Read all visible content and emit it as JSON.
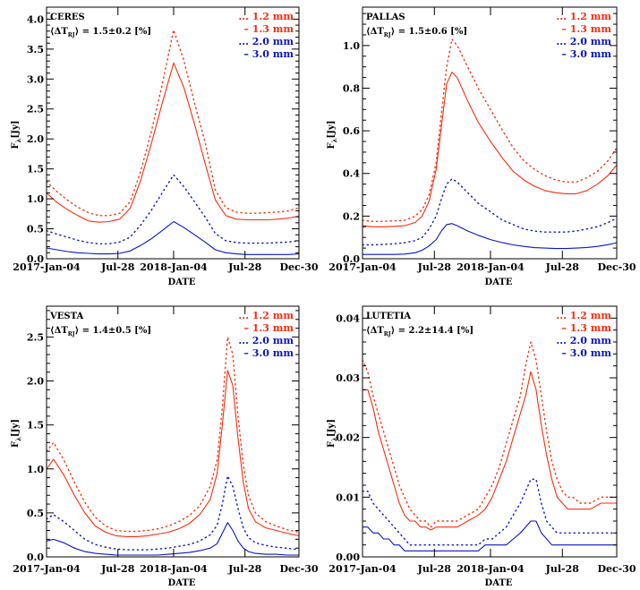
{
  "figure": {
    "colors": {
      "red": "#ff2a0a",
      "blue": "#0a14c8",
      "axis": "#000000"
    },
    "x_axis": {
      "label": "DATE",
      "range_days": [
        0,
        725
      ],
      "ticks": [
        {
          "label": "2017-Jan-04",
          "day": 0
        },
        {
          "label": "Jul-28",
          "day": 205
        },
        {
          "label": "2018-Jan-04",
          "day": 365
        },
        {
          "label": "Jul-28",
          "day": 570
        },
        {
          "label": "Dec-30",
          "day": 725
        }
      ]
    },
    "legend": [
      {
        "prefix": "...",
        "label": "1.2 mm",
        "color": "red",
        "style": "dotted"
      },
      {
        "prefix": "–",
        "label": "1.3 mm",
        "color": "red",
        "style": "solid"
      },
      {
        "prefix": "...",
        "label": "2.0 mm",
        "color": "blue",
        "style": "dotted"
      },
      {
        "prefix": "–",
        "label": "3.0 mm",
        "color": "blue",
        "style": "solid"
      }
    ]
  },
  "chart_data": [
    {
      "type": "line",
      "title": "CERES",
      "annotation": "⟨ΔT_RJ⟩ = 1.5±0.2 [%]",
      "annotation_value": "1.5±0.2 [%]",
      "xlabel": "DATE",
      "ylabel": "Fλ [Jy]",
      "ylim": [
        0,
        4.2
      ],
      "yticks": [
        0.0,
        0.5,
        1.0,
        1.5,
        2.0,
        2.5,
        3.0,
        3.5,
        4.0
      ],
      "ytick_labels": [
        "0.0",
        "0.5",
        "1.0",
        "1.5",
        "2.0",
        "2.5",
        "3.0",
        "3.5",
        "4.0"
      ],
      "yminor": 0.1,
      "x_days": [
        0,
        30,
        60,
        90,
        120,
        150,
        180,
        210,
        240,
        270,
        300,
        330,
        365,
        395,
        425,
        455,
        485,
        515,
        545,
        575,
        605,
        635,
        665,
        695,
        725
      ],
      "series": [
        {
          "name": "1.2 mm",
          "color": "red",
          "style": "dotted",
          "values": [
            1.29,
            1.12,
            0.98,
            0.86,
            0.77,
            0.72,
            0.72,
            0.76,
            0.95,
            1.45,
            2.1,
            2.85,
            3.82,
            3.3,
            2.6,
            1.95,
            1.15,
            0.85,
            0.78,
            0.76,
            0.76,
            0.77,
            0.78,
            0.8,
            0.85
          ]
        },
        {
          "name": "1.3 mm",
          "color": "red",
          "style": "solid",
          "values": [
            1.1,
            0.94,
            0.82,
            0.72,
            0.63,
            0.61,
            0.62,
            0.66,
            0.84,
            1.3,
            1.9,
            2.55,
            3.27,
            2.85,
            2.25,
            1.6,
            0.98,
            0.72,
            0.66,
            0.65,
            0.65,
            0.65,
            0.66,
            0.68,
            0.71
          ]
        },
        {
          "name": "2.0 mm",
          "color": "blue",
          "style": "dotted",
          "values": [
            0.47,
            0.41,
            0.36,
            0.31,
            0.27,
            0.25,
            0.25,
            0.28,
            0.36,
            0.56,
            0.8,
            1.08,
            1.4,
            1.2,
            0.95,
            0.7,
            0.42,
            0.3,
            0.27,
            0.26,
            0.26,
            0.26,
            0.27,
            0.28,
            0.3
          ]
        },
        {
          "name": "3.0 mm",
          "color": "blue",
          "style": "solid",
          "values": [
            0.18,
            0.15,
            0.12,
            0.1,
            0.09,
            0.08,
            0.08,
            0.09,
            0.13,
            0.22,
            0.33,
            0.46,
            0.62,
            0.52,
            0.4,
            0.28,
            0.15,
            0.1,
            0.08,
            0.07,
            0.07,
            0.07,
            0.07,
            0.07,
            0.08
          ]
        }
      ]
    },
    {
      "type": "line",
      "title": "PALLAS",
      "annotation": "⟨ΔT_RJ⟩ = 1.5±0.6 [%]",
      "annotation_value": "1.5±0.6 [%]",
      "xlabel": "DATE",
      "ylabel": "Fλ [Jy]",
      "ylim": [
        0,
        1.18
      ],
      "yticks": [
        0.0,
        0.2,
        0.4,
        0.6,
        0.8,
        1.0
      ],
      "ytick_labels": [
        "0.0",
        "0.2",
        "0.4",
        "0.6",
        "0.8",
        "1.0"
      ],
      "yminor": 0.05,
      "x_days": [
        0,
        30,
        60,
        90,
        120,
        150,
        170,
        190,
        210,
        225,
        240,
        255,
        270,
        300,
        330,
        365,
        400,
        430,
        460,
        490,
        520,
        550,
        580,
        610,
        640,
        670,
        700,
        725
      ],
      "series": [
        {
          "name": "1.2 mm",
          "color": "red",
          "style": "dotted",
          "values": [
            0.18,
            0.175,
            0.175,
            0.178,
            0.18,
            0.2,
            0.23,
            0.3,
            0.45,
            0.68,
            0.9,
            1.03,
            1.0,
            0.9,
            0.8,
            0.7,
            0.6,
            0.52,
            0.46,
            0.42,
            0.39,
            0.37,
            0.36,
            0.36,
            0.38,
            0.41,
            0.46,
            0.52
          ]
        },
        {
          "name": "1.3 mm",
          "color": "red",
          "style": "solid",
          "values": [
            0.155,
            0.15,
            0.15,
            0.152,
            0.155,
            0.17,
            0.2,
            0.27,
            0.42,
            0.62,
            0.82,
            0.875,
            0.85,
            0.74,
            0.64,
            0.55,
            0.47,
            0.41,
            0.37,
            0.34,
            0.32,
            0.31,
            0.305,
            0.305,
            0.32,
            0.35,
            0.39,
            0.44
          ]
        },
        {
          "name": "2.0 mm",
          "color": "blue",
          "style": "dotted",
          "values": [
            0.065,
            0.065,
            0.067,
            0.07,
            0.075,
            0.085,
            0.1,
            0.14,
            0.2,
            0.28,
            0.35,
            0.375,
            0.36,
            0.31,
            0.26,
            0.22,
            0.18,
            0.16,
            0.14,
            0.13,
            0.125,
            0.125,
            0.125,
            0.13,
            0.14,
            0.15,
            0.17,
            0.19
          ]
        },
        {
          "name": "3.0 mm",
          "color": "blue",
          "style": "solid",
          "values": [
            0.02,
            0.02,
            0.02,
            0.02,
            0.022,
            0.028,
            0.04,
            0.06,
            0.09,
            0.13,
            0.16,
            0.165,
            0.155,
            0.13,
            0.11,
            0.09,
            0.075,
            0.065,
            0.058,
            0.052,
            0.05,
            0.048,
            0.048,
            0.05,
            0.053,
            0.058,
            0.066,
            0.075
          ]
        }
      ]
    },
    {
      "type": "line",
      "title": "VESTA",
      "annotation": "⟨ΔT_RJ⟩ = 1.4±0.5 [%]",
      "annotation_value": "1.4±0.5 [%]",
      "xlabel": "DATE",
      "ylabel": "Fλ [Jy]",
      "ylim": [
        0,
        2.85
      ],
      "yticks": [
        0.0,
        0.5,
        1.0,
        1.5,
        2.0,
        2.5
      ],
      "ytick_labels": [
        "0.0",
        "0.5",
        "1.0",
        "1.5",
        "2.0",
        "2.5"
      ],
      "yminor": 0.1,
      "x_days": [
        0,
        20,
        50,
        80,
        110,
        140,
        170,
        200,
        230,
        260,
        290,
        320,
        350,
        380,
        410,
        440,
        470,
        490,
        505,
        520,
        535,
        550,
        565,
        580,
        600,
        630,
        660,
        690,
        725
      ],
      "series": [
        {
          "name": "1.2 mm",
          "color": "red",
          "style": "dotted",
          "values": [
            1.2,
            1.3,
            1.1,
            0.85,
            0.62,
            0.45,
            0.35,
            0.3,
            0.29,
            0.29,
            0.3,
            0.32,
            0.35,
            0.4,
            0.47,
            0.58,
            0.8,
            1.1,
            1.7,
            2.5,
            2.3,
            1.6,
            1.05,
            0.7,
            0.5,
            0.4,
            0.35,
            0.31,
            0.28
          ]
        },
        {
          "name": "1.3 mm",
          "color": "red",
          "style": "solid",
          "values": [
            1.0,
            1.11,
            0.93,
            0.7,
            0.5,
            0.35,
            0.28,
            0.24,
            0.23,
            0.23,
            0.24,
            0.26,
            0.28,
            0.32,
            0.38,
            0.48,
            0.65,
            0.95,
            1.5,
            2.12,
            1.95,
            1.35,
            0.85,
            0.55,
            0.4,
            0.33,
            0.3,
            0.27,
            0.24
          ]
        },
        {
          "name": "2.0 mm",
          "color": "blue",
          "style": "dotted",
          "values": [
            0.43,
            0.48,
            0.4,
            0.3,
            0.2,
            0.14,
            0.11,
            0.09,
            0.08,
            0.08,
            0.08,
            0.09,
            0.1,
            0.12,
            0.14,
            0.18,
            0.25,
            0.36,
            0.6,
            0.92,
            0.8,
            0.55,
            0.33,
            0.22,
            0.16,
            0.13,
            0.11,
            0.1,
            0.08
          ]
        },
        {
          "name": "3.0 mm",
          "color": "blue",
          "style": "solid",
          "values": [
            0.18,
            0.2,
            0.16,
            0.1,
            0.06,
            0.04,
            0.03,
            0.02,
            0.02,
            0.02,
            0.02,
            0.02,
            0.03,
            0.04,
            0.05,
            0.07,
            0.1,
            0.15,
            0.27,
            0.39,
            0.3,
            0.18,
            0.1,
            0.06,
            0.04,
            0.03,
            0.03,
            0.02,
            0.02
          ]
        }
      ]
    },
    {
      "type": "line",
      "title": "LUTETIA",
      "annotation": "⟨ΔT_RJ⟩ = 2.2±14.4 [%]",
      "annotation_value": "2.2±14.4 [%]",
      "xlabel": "DATE",
      "ylabel": "Fλ [Jy]",
      "ylim": [
        0,
        0.042
      ],
      "yticks": [
        0.0,
        0.01,
        0.02,
        0.03,
        0.04
      ],
      "ytick_labels": [
        "0.00",
        "0.01",
        "0.02",
        "0.03",
        "0.04"
      ],
      "yminor": 0.002,
      "x_days": [
        0,
        15,
        30,
        45,
        60,
        75,
        90,
        105,
        120,
        135,
        150,
        165,
        180,
        195,
        210,
        240,
        270,
        300,
        330,
        350,
        370,
        390,
        410,
        430,
        450,
        465,
        480,
        495,
        510,
        525,
        540,
        555,
        570,
        585,
        600,
        620,
        650,
        680,
        705,
        725
      ],
      "series": [
        {
          "name": "1.2 mm",
          "color": "red",
          "style": "dotted",
          "values": [
            0.033,
            0.031,
            0.027,
            0.024,
            0.021,
            0.018,
            0.015,
            0.012,
            0.01,
            0.008,
            0.007,
            0.006,
            0.006,
            0.005,
            0.006,
            0.006,
            0.006,
            0.007,
            0.008,
            0.01,
            0.012,
            0.015,
            0.019,
            0.023,
            0.027,
            0.032,
            0.036,
            0.033,
            0.027,
            0.021,
            0.016,
            0.013,
            0.011,
            0.01,
            0.01,
            0.009,
            0.009,
            0.01,
            0.01,
            0.01
          ]
        },
        {
          "name": "1.3 mm",
          "color": "red",
          "style": "solid",
          "values": [
            0.028,
            0.028,
            0.025,
            0.021,
            0.018,
            0.015,
            0.012,
            0.009,
            0.007,
            0.006,
            0.006,
            0.005,
            0.005,
            0.0045,
            0.005,
            0.005,
            0.005,
            0.006,
            0.007,
            0.008,
            0.01,
            0.013,
            0.016,
            0.02,
            0.024,
            0.027,
            0.031,
            0.028,
            0.022,
            0.017,
            0.013,
            0.01,
            0.009,
            0.008,
            0.008,
            0.008,
            0.008,
            0.009,
            0.009,
            0.009
          ]
        },
        {
          "name": "2.0 mm",
          "color": "blue",
          "style": "dotted",
          "values": [
            0.011,
            0.011,
            0.009,
            0.008,
            0.007,
            0.006,
            0.005,
            0.004,
            0.003,
            0.002,
            0.002,
            0.002,
            0.002,
            0.002,
            0.002,
            0.002,
            0.002,
            0.002,
            0.002,
            0.003,
            0.003,
            0.004,
            0.005,
            0.007,
            0.009,
            0.011,
            0.013,
            0.013,
            0.009,
            0.006,
            0.005,
            0.004,
            0.004,
            0.004,
            0.004,
            0.004,
            0.004,
            0.004,
            0.004,
            0.004
          ]
        },
        {
          "name": "3.0 mm",
          "color": "blue",
          "style": "solid",
          "values": [
            0.005,
            0.005,
            0.004,
            0.004,
            0.003,
            0.003,
            0.002,
            0.002,
            0.001,
            0.001,
            0.001,
            0.001,
            0.001,
            0.001,
            0.001,
            0.001,
            0.001,
            0.001,
            0.001,
            0.002,
            0.002,
            0.002,
            0.002,
            0.003,
            0.004,
            0.005,
            0.006,
            0.006,
            0.004,
            0.003,
            0.002,
            0.002,
            0.002,
            0.002,
            0.002,
            0.002,
            0.002,
            0.002,
            0.002,
            0.002
          ]
        }
      ]
    }
  ]
}
